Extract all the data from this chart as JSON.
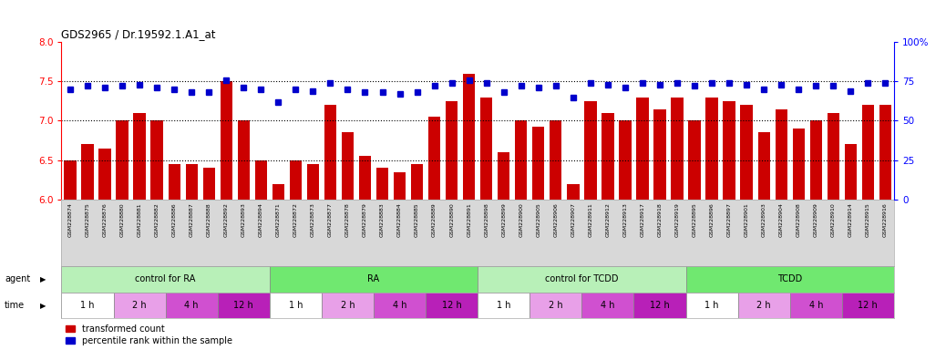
{
  "title": "GDS2965 / Dr.19592.1.A1_at",
  "samples": [
    "GSM228874",
    "GSM228875",
    "GSM228876",
    "GSM228880",
    "GSM228881",
    "GSM228882",
    "GSM228886",
    "GSM228887",
    "GSM228888",
    "GSM228892",
    "GSM228893",
    "GSM228894",
    "GSM228871",
    "GSM228872",
    "GSM228873",
    "GSM228877",
    "GSM228878",
    "GSM228879",
    "GSM228883",
    "GSM228884",
    "GSM228885",
    "GSM228889",
    "GSM228890",
    "GSM228891",
    "GSM228898",
    "GSM228899",
    "GSM228900",
    "GSM228905",
    "GSM228906",
    "GSM228907",
    "GSM228911",
    "GSM228912",
    "GSM228913",
    "GSM228917",
    "GSM228918",
    "GSM228919",
    "GSM228895",
    "GSM228896",
    "GSM228897",
    "GSM228901",
    "GSM228903",
    "GSM228904",
    "GSM228908",
    "GSM228909",
    "GSM228910",
    "GSM228914",
    "GSM228915",
    "GSM228916"
  ],
  "bar_values": [
    6.5,
    6.7,
    6.65,
    7.0,
    7.1,
    7.0,
    6.45,
    6.45,
    6.4,
    7.5,
    7.0,
    6.5,
    6.2,
    6.5,
    6.45,
    7.2,
    6.85,
    6.55,
    6.4,
    6.35,
    6.45,
    7.05,
    7.25,
    7.6,
    7.3,
    6.6,
    7.0,
    6.93,
    7.0,
    6.2,
    7.25,
    7.1,
    7.0,
    7.3,
    7.15,
    7.3,
    7.0,
    7.3,
    7.25,
    7.2,
    6.85,
    7.15,
    6.9,
    7.0,
    7.1,
    6.7,
    7.2,
    7.2
  ],
  "percentile_values": [
    70,
    72,
    71,
    72,
    73,
    71,
    70,
    68,
    68,
    76,
    71,
    70,
    62,
    70,
    69,
    74,
    70,
    68,
    68,
    67,
    68,
    72,
    74,
    76,
    74,
    68,
    72,
    71,
    72,
    65,
    74,
    73,
    71,
    74,
    73,
    74,
    72,
    74,
    74,
    73,
    70,
    73,
    70,
    72,
    72,
    69,
    74,
    74
  ],
  "groups": [
    {
      "label": "control for RA",
      "start": 0,
      "end": 12,
      "color": "#b8f0b8"
    },
    {
      "label": "RA",
      "start": 12,
      "end": 24,
      "color": "#70e870"
    },
    {
      "label": "control for TCDD",
      "start": 24,
      "end": 36,
      "color": "#b8f0b8"
    },
    {
      "label": "TCDD",
      "start": 36,
      "end": 48,
      "color": "#70e870"
    }
  ],
  "time_groups": [
    {
      "label": "1 h",
      "color": "#ffffff",
      "start": 0,
      "end": 3
    },
    {
      "label": "2 h",
      "color": "#e8a0e8",
      "start": 3,
      "end": 6
    },
    {
      "label": "4 h",
      "color": "#d050d0",
      "start": 6,
      "end": 9
    },
    {
      "label": "12 h",
      "color": "#b820b8",
      "start": 9,
      "end": 12
    },
    {
      "label": "1 h",
      "color": "#ffffff",
      "start": 12,
      "end": 15
    },
    {
      "label": "2 h",
      "color": "#e8a0e8",
      "start": 15,
      "end": 18
    },
    {
      "label": "4 h",
      "color": "#d050d0",
      "start": 18,
      "end": 21
    },
    {
      "label": "12 h",
      "color": "#b820b8",
      "start": 21,
      "end": 24
    },
    {
      "label": "1 h",
      "color": "#ffffff",
      "start": 24,
      "end": 27
    },
    {
      "label": "2 h",
      "color": "#e8a0e8",
      "start": 27,
      "end": 30
    },
    {
      "label": "4 h",
      "color": "#d050d0",
      "start": 30,
      "end": 33
    },
    {
      "label": "12 h",
      "color": "#b820b8",
      "start": 33,
      "end": 36
    },
    {
      "label": "1 h",
      "color": "#ffffff",
      "start": 36,
      "end": 39
    },
    {
      "label": "2 h",
      "color": "#e8a0e8",
      "start": 39,
      "end": 42
    },
    {
      "label": "4 h",
      "color": "#d050d0",
      "start": 42,
      "end": 45
    },
    {
      "label": "12 h",
      "color": "#b820b8",
      "start": 45,
      "end": 48
    }
  ],
  "bar_color": "#cc0000",
  "dot_color": "#0000cc",
  "ylim_left": [
    6.0,
    8.0
  ],
  "ylim_right": [
    0,
    100
  ],
  "yticks_left": [
    6.0,
    6.5,
    7.0,
    7.5,
    8.0
  ],
  "yticks_right": [
    0,
    25,
    50,
    75,
    100
  ],
  "grid_values": [
    6.5,
    7.0,
    7.5
  ],
  "background_color": "#ffffff",
  "xticklabel_bg": "#d8d8d8"
}
